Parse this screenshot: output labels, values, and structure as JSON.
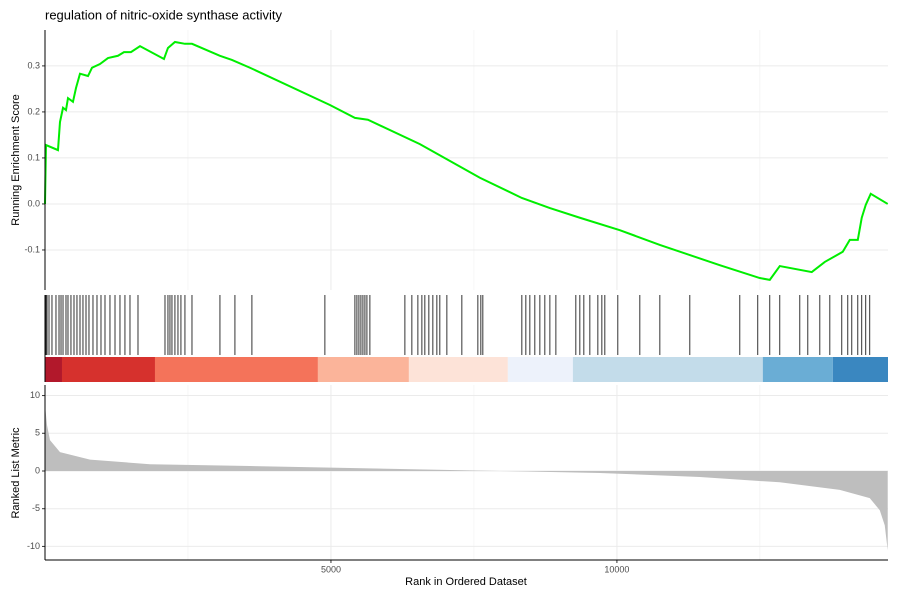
{
  "chart_data": {
    "type": "gsea",
    "title": "regulation of nitric-oxide synthase activity",
    "xlabel": "Rank in Ordered Dataset",
    "ylabel": "Running Enrichment Score",
    "y2label": "Ranked List Metric",
    "xlim": [
      0,
      14740
    ],
    "xticks": [
      5000,
      10000
    ],
    "x_minor_ticks": [
      2500,
      7500,
      12500
    ],
    "ylim": [
      -0.187,
      0.378
    ],
    "yticks": [
      -0.1,
      {
        "value": 0,
        "label": "0.0"
      },
      0.1,
      0.2,
      0.3
    ],
    "y2lim": [
      -11.8,
      11.4
    ],
    "y2ticks": [
      -10,
      -5,
      0,
      5,
      10
    ],
    "grid": true,
    "series": [
      {
        "name": "Running Enrichment Score",
        "color": "#00ee00",
        "x": [
          0,
          17,
          227,
          262,
          315,
          367,
          402,
          489,
          542,
          612,
          752,
          822,
          961,
          1101,
          1276,
          1381,
          1503,
          1661,
          2080,
          2150,
          2272,
          2447,
          2570,
          3059,
          3269,
          3584,
          4982,
          5419,
          5646,
          6555,
          7604,
          8338,
          8828,
          9352,
          10051,
          10751,
          11275,
          11799,
          12498,
          12673,
          12848,
          13407,
          13635,
          13949,
          14072,
          14212,
          14281,
          14351,
          14438,
          14735
        ],
        "values": [
          0,
          0.128,
          0.117,
          0.178,
          0.209,
          0.204,
          0.23,
          0.222,
          0.252,
          0.283,
          0.278,
          0.296,
          0.304,
          0.317,
          0.322,
          0.33,
          0.33,
          0.343,
          0.315,
          0.339,
          0.352,
          0.348,
          0.348,
          0.322,
          0.313,
          0.296,
          0.215,
          0.187,
          0.183,
          0.13,
          0.057,
          0.013,
          -0.009,
          -0.03,
          -0.057,
          -0.089,
          -0.111,
          -0.133,
          -0.161,
          -0.165,
          -0.135,
          -0.148,
          -0.126,
          -0.104,
          -0.078,
          -0.078,
          -0.03,
          -0.002,
          0.022,
          0
        ]
      },
      {
        "name": "Ranked List Metric",
        "color": "#bebebe",
        "axis": "y2",
        "x": [
          0,
          35,
          87,
          262,
          787,
          1836,
          3584,
          6206,
          7954,
          9702,
          11450,
          12848,
          13897,
          14421,
          14596,
          14683,
          14735
        ],
        "values": [
          8.7,
          6.1,
          4.1,
          2.5,
          1.5,
          0.9,
          0.66,
          0.26,
          0,
          -0.26,
          -0.8,
          -1.5,
          -2.5,
          -3.6,
          -5.2,
          -7.2,
          -10.5
        ]
      }
    ],
    "hits": [
      17,
      35,
      70,
      122,
      192,
      245,
      280,
      315,
      367,
      402,
      454,
      507,
      559,
      612,
      664,
      717,
      769,
      839,
      909,
      979,
      1049,
      1136,
      1224,
      1311,
      1398,
      1486,
      1626,
      2098,
      2150,
      2185,
      2220,
      2272,
      2325,
      2377,
      2447,
      2570,
      3059,
      3321,
      3618,
      4894,
      5419,
      5454,
      5489,
      5524,
      5559,
      5594,
      5629,
      5681,
      6293,
      6415,
      6520,
      6590,
      6642,
      6712,
      6782,
      6852,
      6904,
      7027,
      7289,
      7569,
      7621,
      7656,
      8338,
      8408,
      8478,
      8565,
      8653,
      8740,
      8828,
      8933,
      9282,
      9352,
      9422,
      9527,
      9667,
      9737,
      9789,
      10016,
      10401,
      10751,
      11275,
      12149,
      12463,
      12673,
      12848,
      13198,
      13338,
      13548,
      13723,
      13932,
      14037,
      14107,
      14212,
      14281,
      14351,
      14421
    ],
    "color_bands": {
      "edges": [
        0,
        297,
        1923,
        4772,
        6363,
        8093,
        9230,
        12551,
        13775,
        14740
      ],
      "colors": [
        "#b2182b",
        "#d6312d",
        "#f4735a",
        "#fbb49a",
        "#fde3d8",
        "#edf2fb",
        "#c3dcea",
        "#6aadd5",
        "#3a87c0"
      ]
    }
  }
}
